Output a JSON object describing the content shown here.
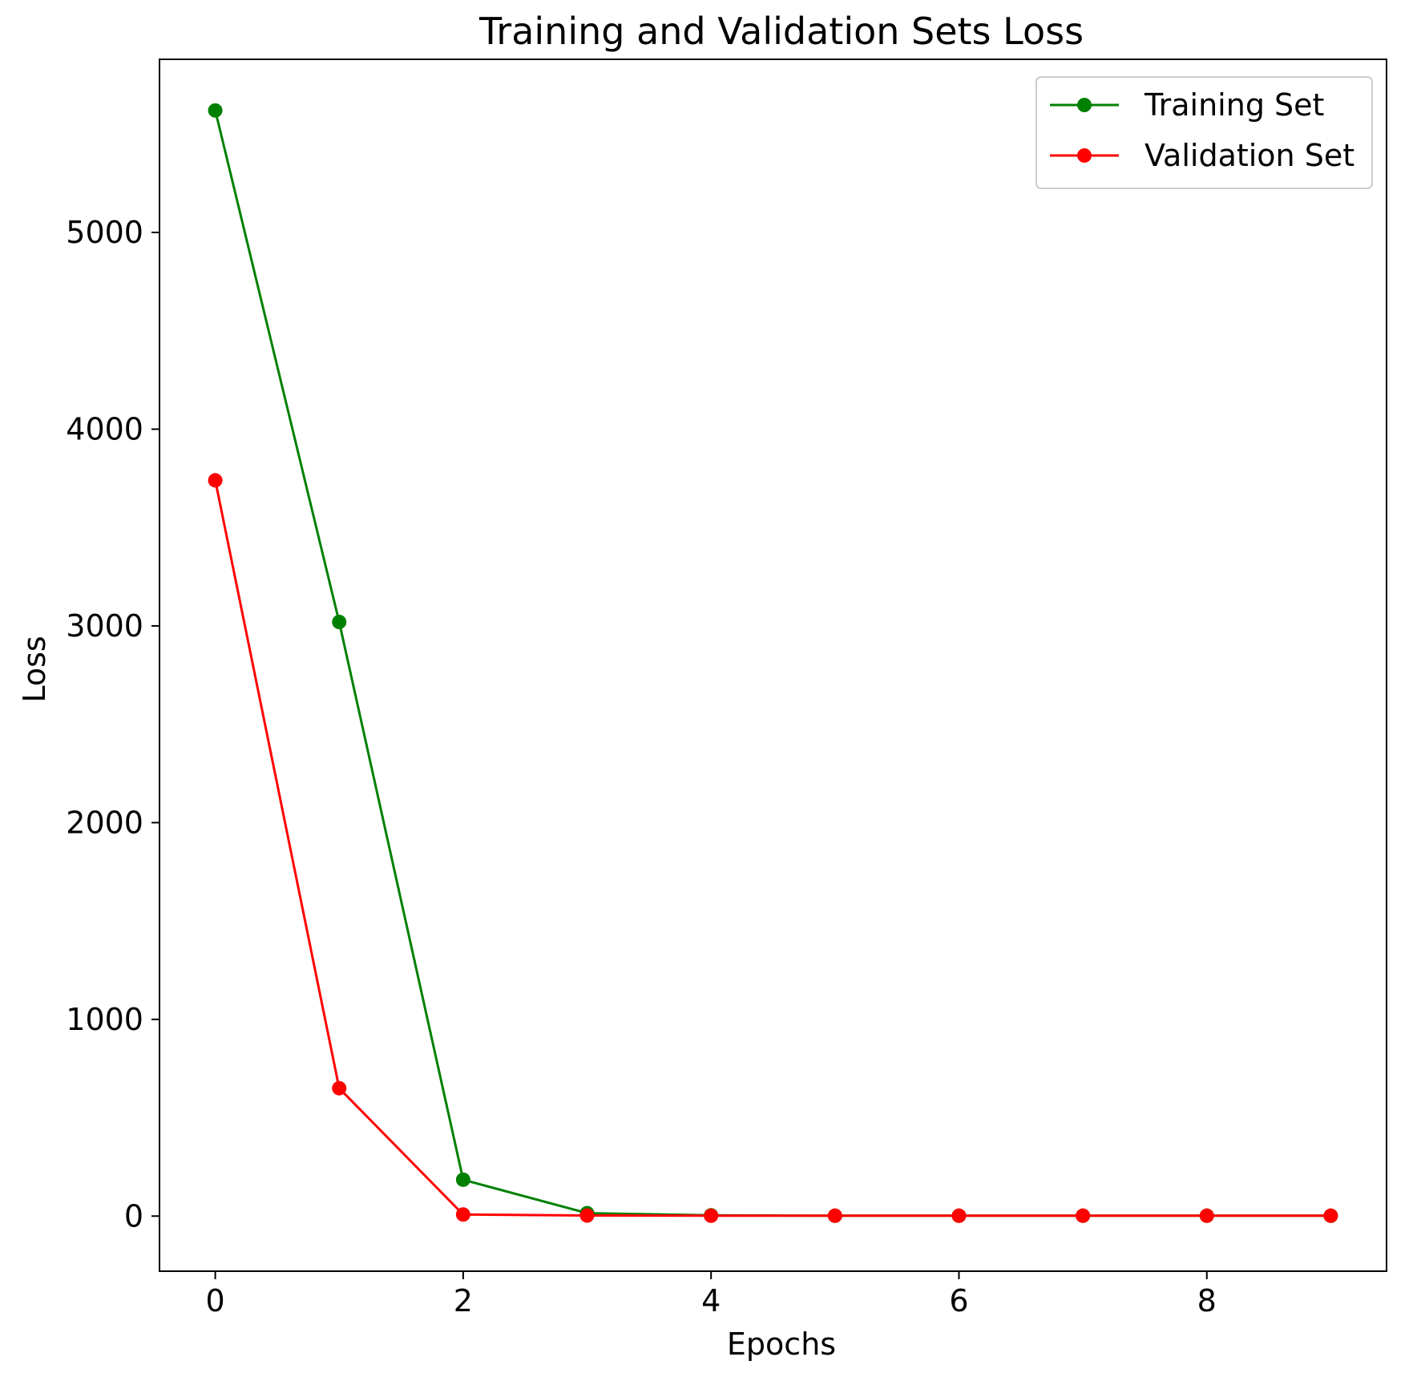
{
  "chart_data": {
    "type": "line",
    "title": "Training and Validation Sets Loss",
    "xlabel": "Epochs",
    "ylabel": "Loss",
    "x": [
      0,
      1,
      2,
      3,
      4,
      5,
      6,
      7,
      8,
      9
    ],
    "xlim": [
      -0.45,
      9.45
    ],
    "ylim": [
      -280,
      5880
    ],
    "xticks": [
      0,
      2,
      4,
      6,
      8
    ],
    "yticks": [
      0,
      1000,
      2000,
      3000,
      4000,
      5000
    ],
    "grid": false,
    "legend_position": "top-right",
    "series": [
      {
        "name": "Training Set",
        "color": "#008000",
        "marker": "circle",
        "values": [
          5620,
          3020,
          185,
          15,
          4,
          2,
          2,
          2,
          2,
          2
        ]
      },
      {
        "name": "Validation Set",
        "color": "#ff0000",
        "marker": "circle",
        "values": [
          3740,
          650,
          8,
          3,
          2,
          2,
          2,
          2,
          2,
          2
        ]
      }
    ]
  }
}
